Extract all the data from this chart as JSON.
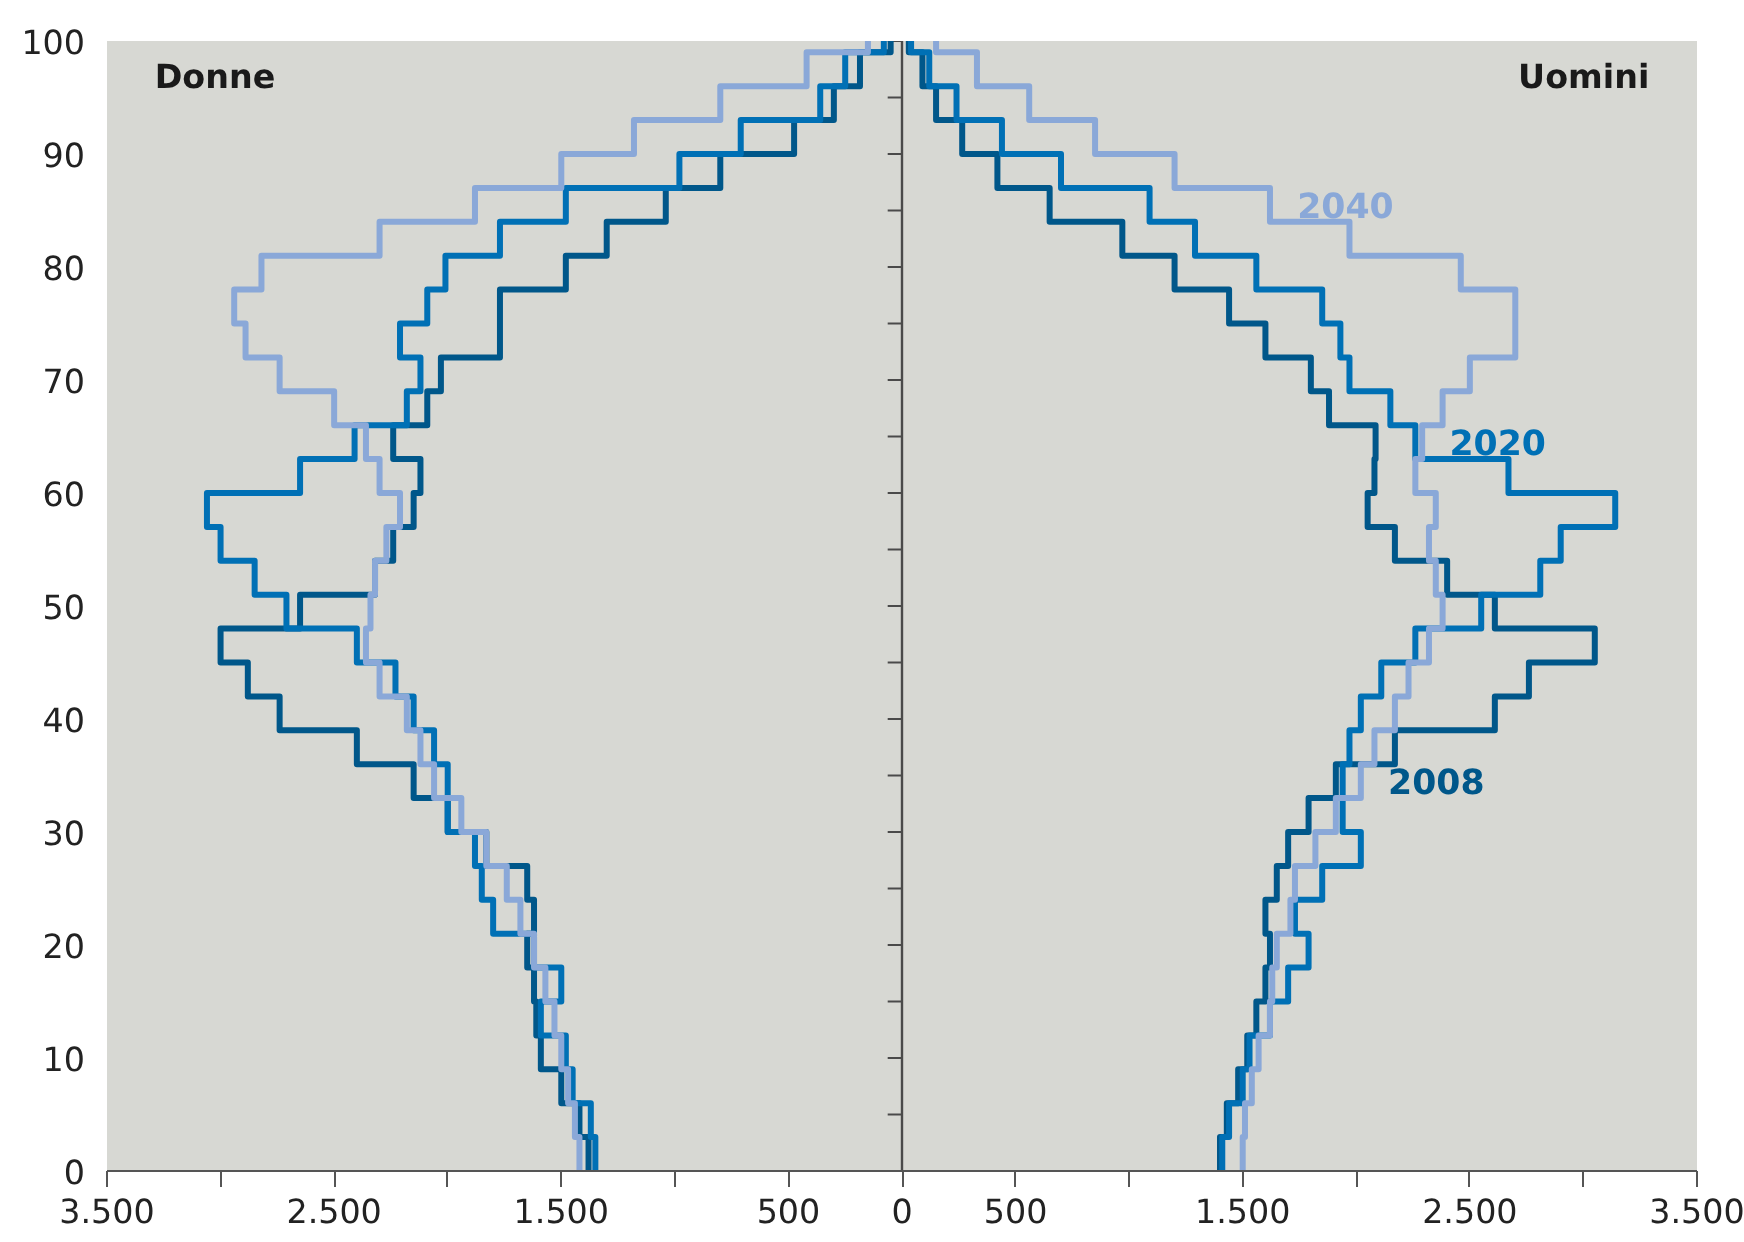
{
  "chart_data": {
    "type": "step",
    "annotations": [
      "Donne",
      "Uomini"
    ],
    "xlim": [
      -3500,
      3500
    ],
    "ylim": [
      0,
      100
    ],
    "xticks": [
      {
        "value": -3500,
        "label": "3.500"
      },
      {
        "value": -3000,
        "label": null
      },
      {
        "value": -2500,
        "label": "2.500"
      },
      {
        "value": -2000,
        "label": null
      },
      {
        "value": -1500,
        "label": "1.500"
      },
      {
        "value": -1000,
        "label": null
      },
      {
        "value": -500,
        "label": "500"
      },
      0,
      500,
      {
        "value": 1000,
        "label": null
      },
      {
        "value": 1500,
        "label": "1.500"
      },
      {
        "value": 2000,
        "label": null
      },
      {
        "value": 2500,
        "label": "2.500"
      },
      {
        "value": 3000,
        "label": null
      },
      {
        "value": 3500,
        "label": "3.500"
      }
    ],
    "yticks": [
      0,
      {
        "value": 5,
        "label": null
      },
      10,
      {
        "value": 15,
        "label": null
      },
      20,
      {
        "value": 25,
        "label": null
      },
      30,
      {
        "value": 35,
        "label": null
      },
      40,
      {
        "value": 45,
        "label": null
      },
      50,
      {
        "value": 55,
        "label": null
      },
      60,
      {
        "value": 65,
        "label": null
      },
      70,
      {
        "value": 75,
        "label": null
      },
      80,
      {
        "value": 85,
        "label": null
      },
      90,
      {
        "value": 95,
        "label": null
      },
      100
    ],
    "grid": false,
    "ref_lines": [
      {
        "axis": "x",
        "value": 0,
        "color": "#4a4a4a"
      }
    ],
    "series": [
      {
        "color": "#00578a",
        "x": [
          -1380,
          -1420,
          -1500,
          -1590,
          -1610,
          -1620,
          -1650,
          -1620,
          -1650,
          -1830,
          -2000,
          -2150,
          -2400,
          -2740,
          -2880,
          -3000,
          -2650,
          -2320,
          -2240,
          -2150,
          -2120,
          -2240,
          -2090,
          -2030,
          -1770,
          -1770,
          -1480,
          -1300,
          -1040,
          -800,
          -475,
          -300,
          -185,
          -50,
          -50
        ],
        "values": [
          0,
          3,
          6,
          9,
          12,
          15,
          18,
          21,
          24,
          27,
          30,
          33,
          36,
          39,
          42,
          45,
          48,
          51,
          54,
          57,
          60,
          63,
          66,
          69,
          72,
          75,
          78,
          81,
          84,
          87,
          90,
          93,
          96,
          99,
          100
        ]
      },
      {
        "color": "#0070b5",
        "x": [
          -1350,
          -1370,
          -1450,
          -1480,
          -1590,
          -1500,
          -1620,
          -1800,
          -1850,
          -1880,
          -2000,
          -2000,
          -2060,
          -2150,
          -2230,
          -2400,
          -2710,
          -2850,
          -3000,
          -3060,
          -2650,
          -2410,
          -2180,
          -2120,
          -2210,
          -2090,
          -2010,
          -1770,
          -1480,
          -980,
          -710,
          -360,
          -250,
          -80,
          -80
        ],
        "values": [
          0,
          3,
          6,
          9,
          12,
          15,
          18,
          21,
          24,
          27,
          30,
          33,
          36,
          39,
          42,
          45,
          48,
          51,
          54,
          57,
          60,
          63,
          66,
          69,
          72,
          75,
          78,
          81,
          84,
          87,
          90,
          93,
          96,
          99,
          100
        ]
      },
      {
        "color": "#8aa8d8",
        "x": [
          -1420,
          -1440,
          -1470,
          -1500,
          -1530,
          -1570,
          -1620,
          -1680,
          -1740,
          -1830,
          -1940,
          -2060,
          -2120,
          -2180,
          -2300,
          -2360,
          -2340,
          -2320,
          -2270,
          -2210,
          -2300,
          -2360,
          -2500,
          -2740,
          -2890,
          -2940,
          -2820,
          -2300,
          -1880,
          -1500,
          -1180,
          -800,
          -420,
          -150,
          -150
        ],
        "values": [
          0,
          3,
          6,
          9,
          12,
          15,
          18,
          21,
          24,
          27,
          30,
          33,
          36,
          39,
          42,
          45,
          48,
          51,
          54,
          57,
          60,
          63,
          66,
          69,
          72,
          75,
          78,
          81,
          84,
          87,
          90,
          93,
          96,
          99,
          100
        ]
      },
      {
        "name": "2008",
        "color": "#00578a",
        "x": [
          1400,
          1430,
          1480,
          1520,
          1560,
          1600,
          1620,
          1600,
          1650,
          1700,
          1790,
          1910,
          2170,
          2610,
          2760,
          3050,
          2610,
          2400,
          2170,
          2050,
          2080,
          2085,
          1880,
          1800,
          1600,
          1440,
          1200,
          970,
          650,
          420,
          265,
          150,
          90,
          30,
          30
        ],
        "values": [
          0,
          3,
          6,
          9,
          12,
          15,
          18,
          21,
          24,
          27,
          30,
          33,
          36,
          39,
          42,
          45,
          48,
          51,
          54,
          57,
          60,
          63,
          66,
          69,
          72,
          75,
          78,
          81,
          84,
          87,
          90,
          93,
          96,
          99,
          100
        ]
      },
      {
        "name": "2020",
        "color": "#0070b5",
        "x": [
          1410,
          1440,
          1500,
          1530,
          1620,
          1700,
          1790,
          1730,
          1850,
          2020,
          1940,
          1940,
          1970,
          2020,
          2110,
          2260,
          2550,
          2810,
          2900,
          3140,
          2670,
          2260,
          2150,
          1970,
          1930,
          1850,
          1560,
          1290,
          1090,
          700,
          440,
          240,
          120,
          40,
          40
        ],
        "values": [
          0,
          3,
          6,
          9,
          12,
          15,
          18,
          21,
          24,
          27,
          30,
          33,
          36,
          39,
          42,
          45,
          48,
          51,
          54,
          57,
          60,
          63,
          66,
          69,
          72,
          75,
          78,
          81,
          84,
          87,
          90,
          93,
          96,
          99,
          100
        ]
      },
      {
        "name": "2040",
        "color": "#8aa8d8",
        "x": [
          1500,
          1510,
          1540,
          1570,
          1620,
          1630,
          1650,
          1710,
          1730,
          1820,
          1910,
          2020,
          2080,
          2170,
          2230,
          2320,
          2380,
          2350,
          2320,
          2350,
          2260,
          2290,
          2380,
          2500,
          2700,
          2700,
          2460,
          1970,
          1620,
          1200,
          850,
          560,
          330,
          150,
          150
        ],
        "values": [
          0,
          3,
          6,
          9,
          12,
          15,
          18,
          21,
          24,
          27,
          30,
          33,
          36,
          39,
          42,
          45,
          48,
          51,
          54,
          57,
          60,
          63,
          66,
          69,
          72,
          75,
          78,
          81,
          84,
          87,
          90,
          93,
          96,
          99,
          100
        ]
      }
    ]
  }
}
